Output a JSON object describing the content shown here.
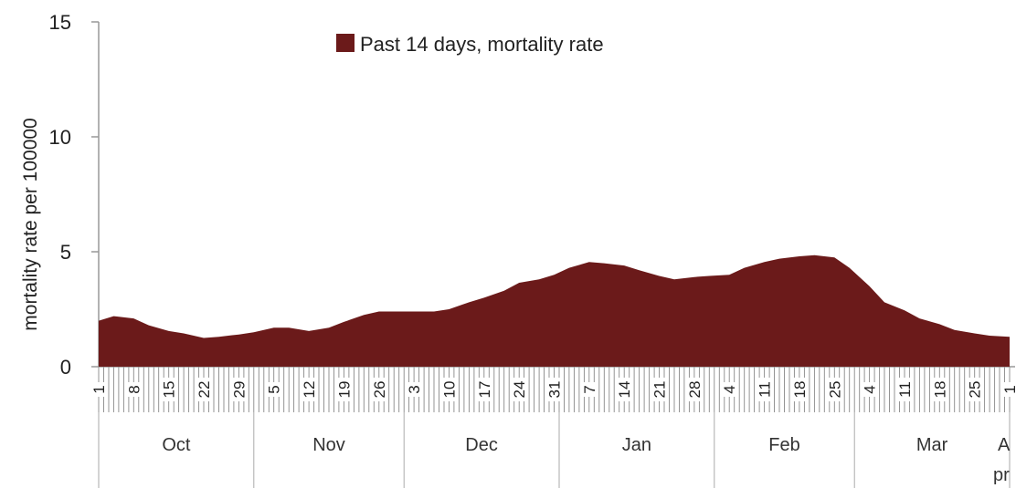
{
  "chart_data": {
    "type": "area",
    "title": "",
    "ylabel": "mortality rate per 100000",
    "xlabel": "",
    "ylim": [
      0,
      15
    ],
    "y_ticks": [
      "0",
      "5",
      "10",
      "15"
    ],
    "grid": false,
    "legend": {
      "position": "top",
      "entries": [
        "Past 14 days, mortality rate"
      ]
    },
    "colors": {
      "area": "#6b1a1a",
      "axis": "#999999",
      "hatch": "#888888"
    },
    "x_day_labels": [
      "1",
      "8",
      "15",
      "22",
      "29",
      "5",
      "12",
      "19",
      "26",
      "3",
      "10",
      "17",
      "24",
      "31",
      "7",
      "14",
      "21",
      "28",
      "4",
      "11",
      "18",
      "25",
      "4",
      "11",
      "18",
      "25",
      "1"
    ],
    "months": [
      "Oct",
      "Nov",
      "Dec",
      "Jan",
      "Feb",
      "Mar",
      "A\npr"
    ],
    "series": [
      {
        "name": "Past 14 days, mortality rate",
        "x": [
          "Oct 1",
          "Oct 4",
          "Oct 8",
          "Oct 11",
          "Oct 15",
          "Oct 18",
          "Oct 22",
          "Oct 25",
          "Oct 29",
          "Nov 1",
          "Nov 5",
          "Nov 8",
          "Nov 12",
          "Nov 16",
          "Nov 19",
          "Nov 23",
          "Nov 26",
          "Nov 30",
          "Dec 3",
          "Dec 7",
          "Dec 10",
          "Dec 14",
          "Dec 17",
          "Dec 21",
          "Dec 24",
          "Dec 28",
          "Dec 31",
          "Jan 3",
          "Jan 7",
          "Jan 10",
          "Jan 14",
          "Jan 17",
          "Jan 21",
          "Jan 24",
          "Jan 28",
          "Jan 31",
          "Feb 4",
          "Feb 7",
          "Feb 11",
          "Feb 14",
          "Feb 18",
          "Feb 21",
          "Feb 25",
          "Feb 28",
          "Mar 4",
          "Mar 7",
          "Mar 11",
          "Mar 14",
          "Mar 18",
          "Mar 21",
          "Mar 25",
          "Mar 28",
          "Apr 1"
        ],
        "values": [
          2.0,
          2.2,
          2.1,
          1.8,
          1.55,
          1.45,
          1.25,
          1.3,
          1.4,
          1.5,
          1.7,
          1.7,
          1.55,
          1.7,
          1.95,
          2.25,
          2.4,
          2.4,
          2.4,
          2.4,
          2.5,
          2.8,
          3.0,
          3.3,
          3.65,
          3.8,
          4.0,
          4.3,
          4.55,
          4.5,
          4.4,
          4.2,
          3.95,
          3.8,
          3.9,
          3.95,
          4.0,
          4.3,
          4.55,
          4.7,
          4.8,
          4.85,
          4.75,
          4.3,
          3.5,
          2.8,
          2.45,
          2.1,
          1.85,
          1.6,
          1.45,
          1.35,
          1.3
        ]
      }
    ]
  }
}
